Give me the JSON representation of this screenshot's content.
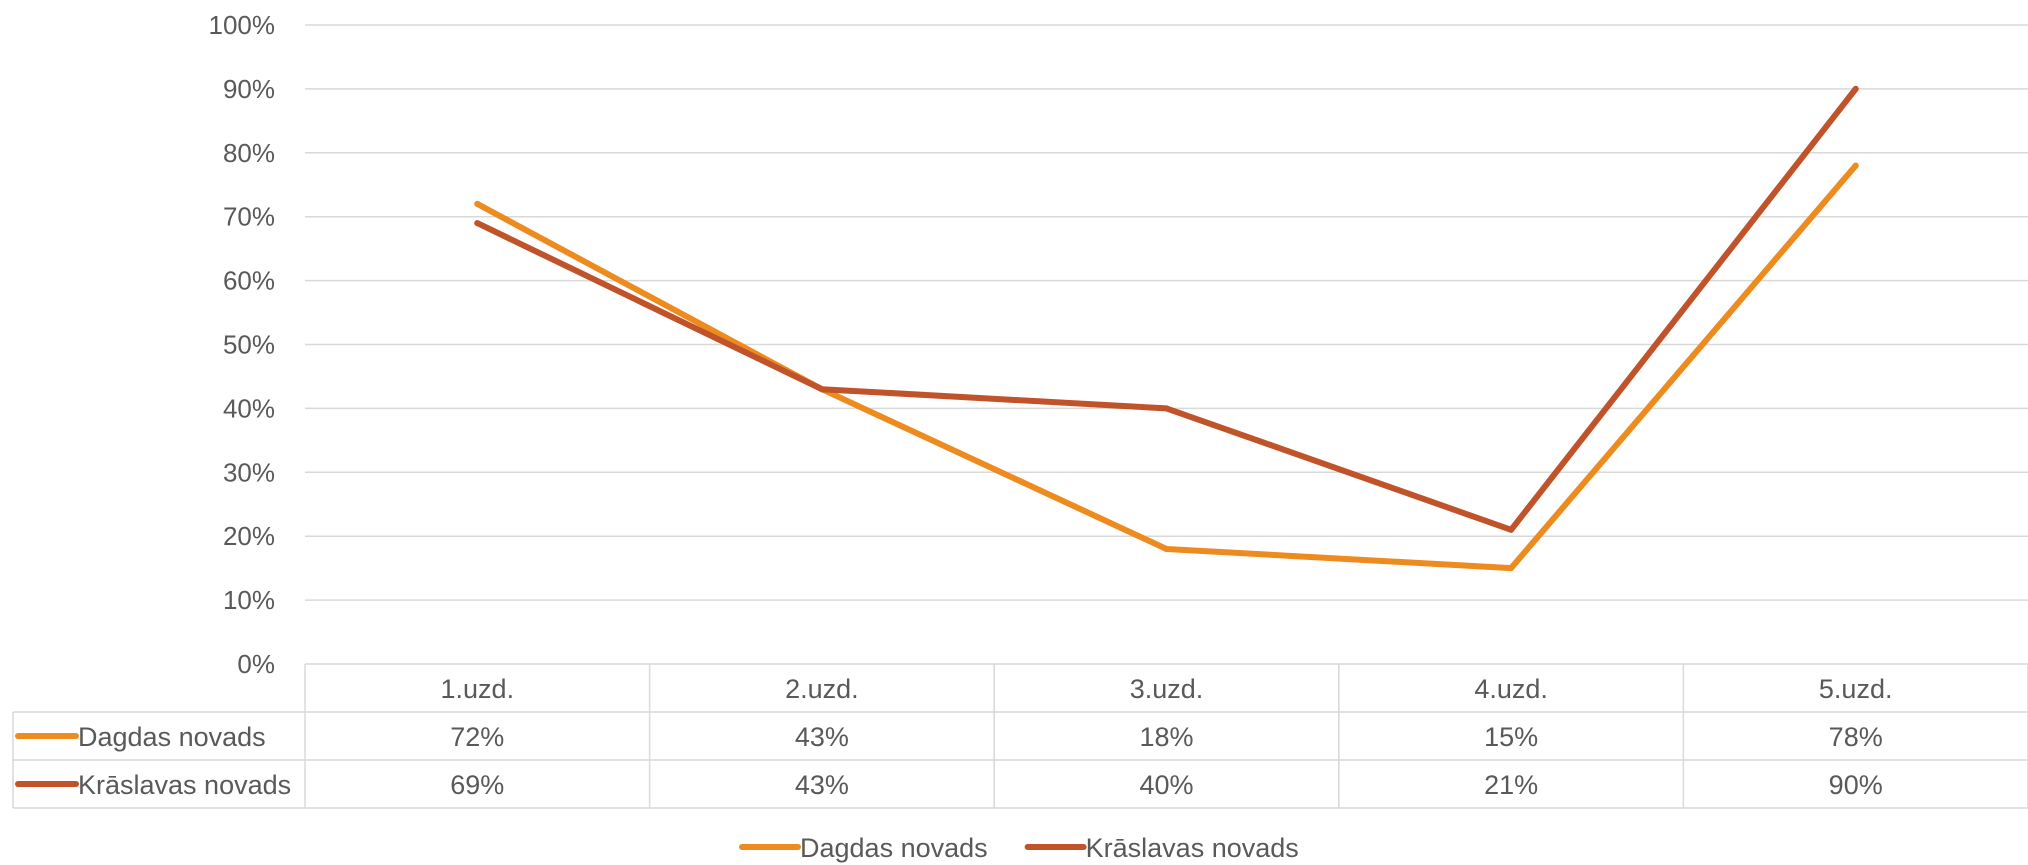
{
  "chart_data": {
    "type": "line",
    "title": "",
    "xlabel": "",
    "ylabel": "",
    "categories": [
      "1.uzd.",
      "2.uzd.",
      "3.uzd.",
      "4.uzd.",
      "5.uzd."
    ],
    "ylim": [
      0,
      100
    ],
    "y_ticks": [
      "0%",
      "10%",
      "20%",
      "30%",
      "40%",
      "50%",
      "60%",
      "70%",
      "80%",
      "90%",
      "100%"
    ],
    "grid": true,
    "legend_position": "bottom",
    "data_table": true,
    "series": [
      {
        "name": "Dagdas novads",
        "color": "#ED8B1F",
        "values": [
          72,
          43,
          18,
          15,
          78
        ],
        "labels": [
          "72%",
          "43%",
          "18%",
          "15%",
          "78%"
        ]
      },
      {
        "name": "Krāslavas novads",
        "color": "#C0532A",
        "values": [
          69,
          43,
          40,
          21,
          90
        ],
        "labels": [
          "69%",
          "43%",
          "40%",
          "21%",
          "90%"
        ]
      }
    ]
  }
}
